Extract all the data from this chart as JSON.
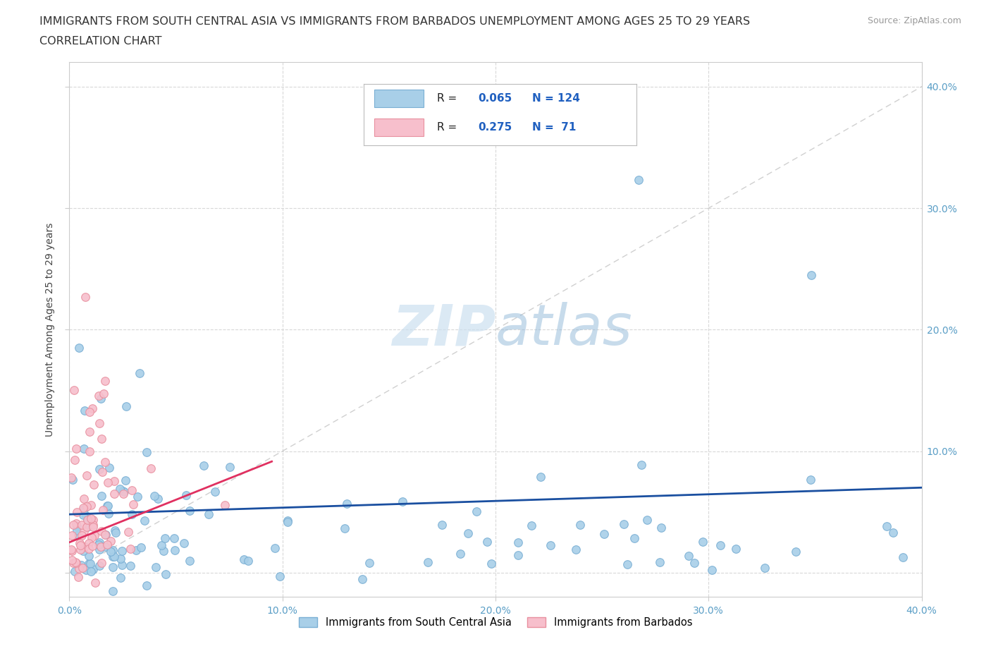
{
  "title_line1": "IMMIGRANTS FROM SOUTH CENTRAL ASIA VS IMMIGRANTS FROM BARBADOS UNEMPLOYMENT AMONG AGES 25 TO 29 YEARS",
  "title_line2": "CORRELATION CHART",
  "source_text": "Source: ZipAtlas.com",
  "ylabel": "Unemployment Among Ages 25 to 29 years",
  "xlim": [
    0.0,
    0.4
  ],
  "ylim": [
    -0.02,
    0.42
  ],
  "blue_R": 0.065,
  "blue_N": 124,
  "pink_R": 0.275,
  "pink_N": 71,
  "blue_color": "#a8cfe8",
  "pink_color": "#f7bfcc",
  "blue_edge": "#7aafd4",
  "pink_edge": "#e8909f",
  "blue_label": "Immigrants from South Central Asia",
  "pink_label": "Immigrants from Barbados",
  "trend_blue_color": "#1a4fa0",
  "trend_pink_color": "#e03060",
  "diagonal_color": "#d0d0d0",
  "watermark_color": "#cce0f0",
  "background_color": "#ffffff",
  "grid_color": "#d8d8d8",
  "tick_color": "#5a9ec6",
  "legend_R_color": "#000000",
  "legend_val_color": "#2060c0"
}
